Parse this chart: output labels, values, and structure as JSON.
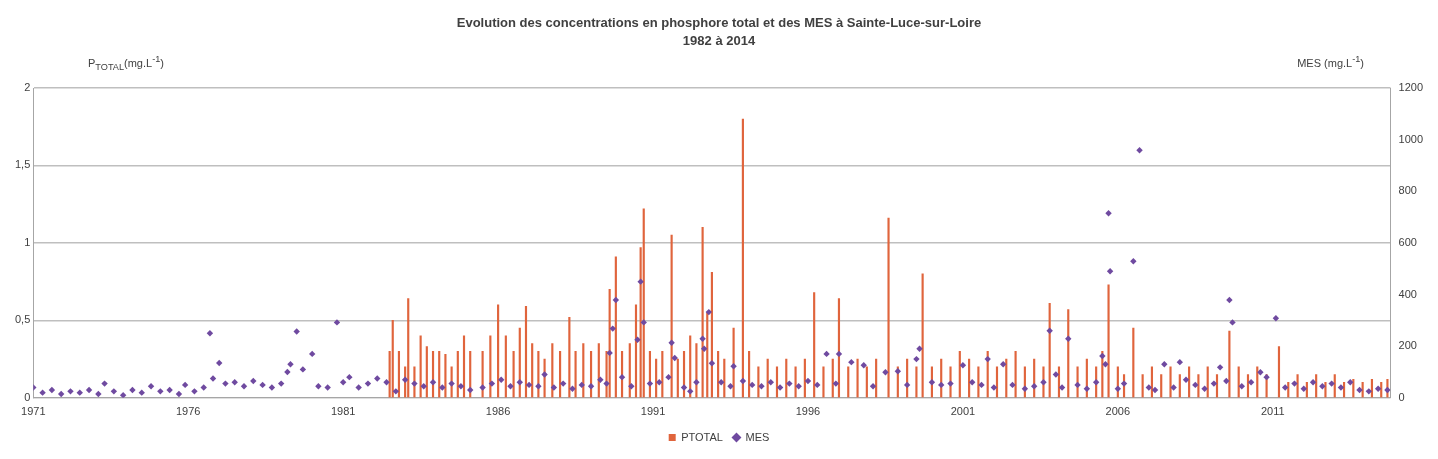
{
  "chart_data": {
    "type": "bar",
    "title": "Evolution des concentrations en phosphore total et des MES à Sainte-Luce-sur-Loire",
    "subtitle": "1982 à 2014",
    "ylabel": "P$_{TOTAL}$(mg.L$^{-1}$)",
    "y2label": "MES (mg.L$^{-1}$)",
    "xlim": [
      1971,
      2014.8
    ],
    "xticks": [
      1971,
      1976,
      1981,
      1986,
      1991,
      1996,
      2001,
      2006,
      2011
    ],
    "ylim": [
      0,
      2
    ],
    "yticks": [
      0,
      {
        "value": 0.5,
        "label": "0,5"
      },
      1,
      {
        "value": 1.5,
        "label": "1,5"
      },
      2
    ],
    "y2lim": [
      0,
      1200
    ],
    "y2ticks": [
      0,
      200,
      400,
      600,
      800,
      1000,
      1200
    ],
    "grid": "y",
    "legend": "bottom",
    "marker": "diamond",
    "series": [
      {
        "name": "PTOTAL",
        "color": "#e0643c",
        "x": [
          1982.5,
          1982.6,
          1982.8,
          1983.0,
          1983.1,
          1983.3,
          1983.5,
          1983.7,
          1983.9,
          1984.1,
          1984.3,
          1984.5,
          1984.7,
          1984.9,
          1985.1,
          1985.5,
          1985.75,
          1986.0,
          1986.25,
          1986.5,
          1986.7,
          1986.9,
          1987.1,
          1987.3,
          1987.5,
          1987.75,
          1988.0,
          1988.3,
          1988.5,
          1988.75,
          1989.0,
          1989.25,
          1989.5,
          1989.6,
          1989.8,
          1990.0,
          1990.25,
          1990.45,
          1990.6,
          1990.7,
          1990.9,
          1991.1,
          1991.3,
          1991.6,
          1991.8,
          1992.0,
          1992.2,
          1992.4,
          1992.6,
          1992.75,
          1992.9,
          1993.1,
          1993.3,
          1993.6,
          1993.9,
          1994.1,
          1994.4,
          1994.7,
          1995.0,
          1995.3,
          1995.6,
          1995.9,
          1996.2,
          1996.5,
          1996.8,
          1997.0,
          1997.3,
          1997.6,
          1997.9,
          1998.2,
          1998.6,
          1998.9,
          1999.2,
          1999.5,
          1999.7,
          2000.0,
          2000.3,
          2000.6,
          2000.9,
          2001.2,
          2001.5,
          2001.8,
          2002.1,
          2002.4,
          2002.7,
          2003.0,
          2003.3,
          2003.6,
          2003.8,
          2004.1,
          2004.4,
          2004.7,
          2005.0,
          2005.3,
          2005.5,
          2005.7,
          2006.0,
          2006.2,
          2006.5,
          2006.8,
          2007.1,
          2007.4,
          2007.7,
          2008.0,
          2008.3,
          2008.6,
          2008.9,
          2009.2,
          2009.6,
          2009.9,
          2010.2,
          2010.5,
          2010.8,
          2011.2,
          2011.5,
          2011.8,
          2012.1,
          2012.4,
          2012.7,
          2013.0,
          2013.3,
          2013.6,
          2013.9,
          2014.2,
          2014.5,
          2014.7
        ],
        "values": [
          0.3,
          0.5,
          0.3,
          0.2,
          0.64,
          0.2,
          0.4,
          0.33,
          0.3,
          0.3,
          0.28,
          0.2,
          0.3,
          0.4,
          0.3,
          0.3,
          0.4,
          0.6,
          0.4,
          0.3,
          0.45,
          0.59,
          0.35,
          0.3,
          0.25,
          0.35,
          0.3,
          0.52,
          0.3,
          0.35,
          0.3,
          0.35,
          0.3,
          0.7,
          0.91,
          0.3,
          0.35,
          0.6,
          0.97,
          1.22,
          0.3,
          0.25,
          0.3,
          1.05,
          0.25,
          0.3,
          0.4,
          0.35,
          1.1,
          0.55,
          0.81,
          0.3,
          0.25,
          0.45,
          1.8,
          0.3,
          0.2,
          0.25,
          0.2,
          0.25,
          0.2,
          0.25,
          0.68,
          0.2,
          0.25,
          0.64,
          0.2,
          0.25,
          0.2,
          0.25,
          1.16,
          0.2,
          0.25,
          0.2,
          0.8,
          0.2,
          0.25,
          0.2,
          0.3,
          0.25,
          0.2,
          0.3,
          0.2,
          0.25,
          0.3,
          0.2,
          0.25,
          0.2,
          0.61,
          0.2,
          0.57,
          0.2,
          0.25,
          0.2,
          0.3,
          0.73,
          0.2,
          0.15,
          0.45,
          0.15,
          0.2,
          0.15,
          0.2,
          0.15,
          0.2,
          0.15,
          0.2,
          0.15,
          0.43,
          0.2,
          0.15,
          0.2,
          0.15,
          0.33,
          0.1,
          0.15,
          0.1,
          0.15,
          0.1,
          0.15,
          0.1,
          0.12,
          0.1,
          0.12,
          0.1,
          0.12
        ]
      },
      {
        "name": "MES",
        "type": "scatter",
        "axis": "y2",
        "color": "#6f4aa0",
        "x": [
          1971.0,
          1971.3,
          1971.6,
          1971.9,
          1972.2,
          1972.5,
          1972.8,
          1973.1,
          1973.3,
          1973.6,
          1973.9,
          1974.2,
          1974.5,
          1974.8,
          1975.1,
          1975.4,
          1975.7,
          1975.9,
          1976.2,
          1976.5,
          1976.7,
          1976.8,
          1977.0,
          1977.2,
          1977.5,
          1977.8,
          1978.1,
          1978.4,
          1978.7,
          1979.0,
          1979.2,
          1979.3,
          1979.5,
          1979.7,
          1980.0,
          1980.2,
          1980.5,
          1980.8,
          1981.0,
          1981.2,
          1981.5,
          1981.8,
          1982.1,
          1982.4,
          1982.7,
          1983.0,
          1983.3,
          1983.6,
          1983.9,
          1984.2,
          1984.5,
          1984.8,
          1985.1,
          1985.5,
          1985.8,
          1986.1,
          1986.4,
          1986.7,
          1987.0,
          1987.3,
          1987.5,
          1987.8,
          1988.1,
          1988.4,
          1988.7,
          1989.0,
          1989.3,
          1989.5,
          1989.6,
          1989.7,
          1989.8,
          1990.0,
          1990.3,
          1990.5,
          1990.6,
          1990.7,
          1990.9,
          1991.2,
          1991.5,
          1991.6,
          1991.7,
          1992.0,
          1992.2,
          1992.4,
          1992.6,
          1992.65,
          1992.8,
          1992.9,
          1993.2,
          1993.5,
          1993.6,
          1993.9,
          1994.2,
          1994.5,
          1994.8,
          1995.1,
          1995.4,
          1995.7,
          1996.0,
          1996.3,
          1996.6,
          1996.9,
          1997.0,
          1997.4,
          1997.8,
          1998.1,
          1998.5,
          1998.9,
          1999.2,
          1999.5,
          1999.6,
          2000.0,
          2000.3,
          2000.6,
          2001.0,
          2001.3,
          2001.6,
          2001.8,
          2002.0,
          2002.3,
          2002.6,
          2003.0,
          2003.3,
          2003.6,
          2003.8,
          2004.0,
          2004.2,
          2004.4,
          2004.7,
          2005.0,
          2005.3,
          2005.5,
          2005.6,
          2005.7,
          2005.75,
          2006.0,
          2006.2,
          2006.5,
          2006.7,
          2007.0,
          2007.2,
          2007.5,
          2007.8,
          2008.0,
          2008.2,
          2008.5,
          2008.8,
          2009.1,
          2009.3,
          2009.5,
          2009.6,
          2009.7,
          2010.0,
          2010.3,
          2010.6,
          2010.8,
          2011.1,
          2011.4,
          2011.7,
          2012.0,
          2012.3,
          2012.6,
          2012.9,
          2013.2,
          2013.5,
          2013.8,
          2014.1,
          2014.4,
          2014.7
        ],
        "values": [
          40,
          20,
          30,
          15,
          25,
          20,
          30,
          15,
          55,
          25,
          10,
          30,
          20,
          45,
          25,
          30,
          15,
          50,
          25,
          40,
          250,
          75,
          135,
          55,
          60,
          45,
          65,
          50,
          40,
          55,
          100,
          130,
          257,
          110,
          170,
          45,
          40,
          292,
          60,
          80,
          40,
          55,
          75,
          60,
          25,
          70,
          55,
          45,
          60,
          40,
          55,
          45,
          30,
          40,
          55,
          70,
          45,
          60,
          50,
          45,
          90,
          40,
          55,
          35,
          50,
          45,
          70,
          55,
          174,
          268,
          379,
          80,
          45,
          225,
          450,
          292,
          55,
          60,
          80,
          213,
          154,
          40,
          25,
          60,
          229,
          190,
          332,
          134,
          60,
          45,
          122,
          65,
          50,
          45,
          60,
          40,
          55,
          45,
          65,
          50,
          170,
          55,
          170,
          138,
          126,
          45,
          99,
          103,
          50,
          150,
          190,
          60,
          50,
          55,
          126,
          60,
          50,
          150,
          40,
          130,
          50,
          35,
          45,
          60,
          260,
          90,
          40,
          229,
          50,
          35,
          60,
          162,
          130,
          715,
          490,
          35,
          55,
          529,
          959,
          40,
          30,
          130,
          40,
          138,
          70,
          50,
          35,
          55,
          118,
          65,
          379,
          292,
          45,
          60,
          99,
          80,
          308,
          40,
          55,
          35,
          60,
          45,
          55,
          40,
          60,
          30,
          25,
          35,
          30
        ]
      }
    ]
  }
}
